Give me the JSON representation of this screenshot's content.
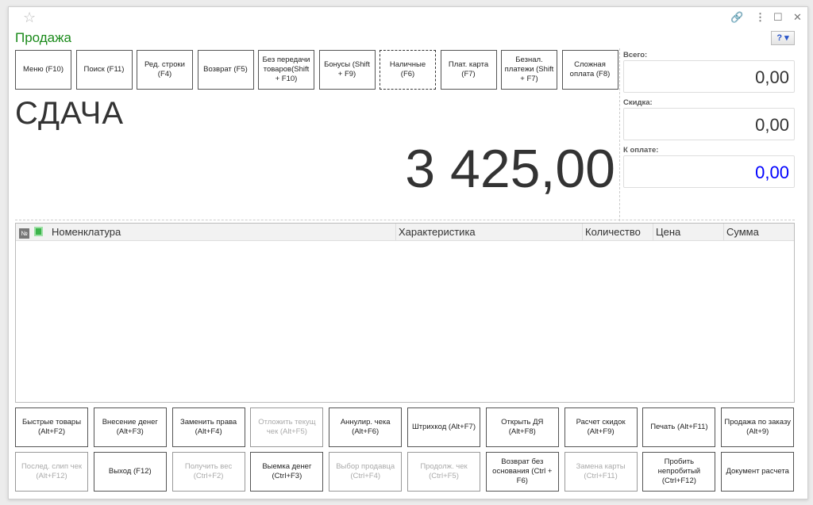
{
  "window": {
    "title": "Продажа",
    "icons": [
      "star-icon",
      "link-icon",
      "more-icon",
      "maximize-icon",
      "close-icon"
    ],
    "help_label": "?"
  },
  "top_buttons": [
    {
      "label": "Меню (F10)"
    },
    {
      "label": "Поиск (F11)"
    },
    {
      "label": "Ред. строки (F4)"
    },
    {
      "label": "Возврат (F5)"
    },
    {
      "label": "Без передачи товаров(Shift + F10)"
    },
    {
      "label": "Бонусы (Shift + F9)"
    },
    {
      "label": "Наличные (F6)"
    },
    {
      "label": "Плат. карта (F7)"
    },
    {
      "label": "Безнал. платежи (Shift + F7)"
    },
    {
      "label": "Сложная оплата (F8)"
    }
  ],
  "change": {
    "label": "СДАЧА",
    "value": "3 425,00"
  },
  "totals": {
    "total_label": "Всего:",
    "total_value": "0,00",
    "discount_label": "Скидка:",
    "discount_value": "0,00",
    "to_pay_label": "К оплате:",
    "to_pay_value": "0,00",
    "to_pay_color": "#0000ff"
  },
  "table": {
    "columns": [
      "№",
      "",
      "Номенклатура",
      "Характеристика",
      "Количество",
      "Цена",
      "Сумма"
    ],
    "rows": []
  },
  "bottom_buttons": [
    {
      "label": "Быстрые товары (Alt+F2)",
      "enabled": true
    },
    {
      "label": "Внесение денег (Alt+F3)",
      "enabled": true
    },
    {
      "label": "Заменить права (Alt+F4)",
      "enabled": true
    },
    {
      "label": "Отложить текущ чек (Alt+F5)",
      "enabled": false
    },
    {
      "label": "Аннулир. чека (Alt+F6)",
      "enabled": true
    },
    {
      "label": "Штрихкод (Alt+F7)",
      "enabled": true
    },
    {
      "label": "Открыть ДЯ (Alt+F8)",
      "enabled": true
    },
    {
      "label": "Расчет скидок (Alt+F9)",
      "enabled": true
    },
    {
      "label": "Печать (Alt+F11)",
      "enabled": true
    },
    {
      "label": "Продажа по заказу (Alt+9)",
      "enabled": true
    },
    {
      "label": "Послед. слип чек (Alt+F12)",
      "enabled": false
    },
    {
      "label": "Выход (F12)",
      "enabled": true
    },
    {
      "label": "Получить вес (Ctrl+F2)",
      "enabled": false
    },
    {
      "label": "Выемка денег (Ctrl+F3)",
      "enabled": true
    },
    {
      "label": "Выбор продавца (Ctrl+F4)",
      "enabled": false
    },
    {
      "label": "Продолж. чек (Ctrl+F5)",
      "enabled": false
    },
    {
      "label": "Возврат без основания (Ctrl + F6)",
      "enabled": true
    },
    {
      "label": "Замена карты (Ctrl+F11)",
      "enabled": false
    },
    {
      "label": "Пробить непробитый (Ctrl+F12)",
      "enabled": true
    },
    {
      "label": "Документ расчета",
      "enabled": true
    }
  ]
}
